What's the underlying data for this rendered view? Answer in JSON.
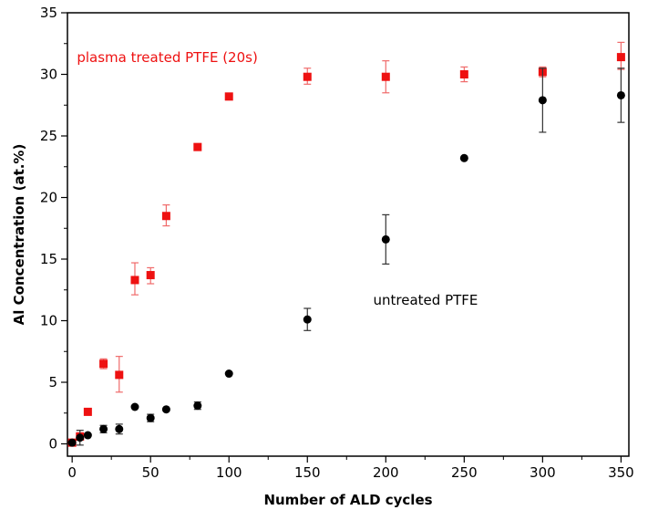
{
  "chart_data": {
    "type": "scatter",
    "title": "",
    "xlabel": "Number of ALD cycles",
    "ylabel": "Al Concentration (at.%)",
    "xlim": [
      -3,
      355
    ],
    "ylim": [
      -1,
      35
    ],
    "xticks": [
      0,
      50,
      100,
      150,
      200,
      250,
      300,
      350
    ],
    "yticks": [
      0,
      5,
      10,
      15,
      20,
      25,
      30,
      35
    ],
    "grid": false,
    "legend": "none",
    "series": [
      {
        "name": "plasma treated PTFE (20s)",
        "color": "#ee1111",
        "marker": "square",
        "x": [
          0,
          5,
          10,
          20,
          30,
          40,
          50,
          60,
          80,
          100,
          150,
          200,
          250,
          300,
          350
        ],
        "y": [
          0.1,
          0.6,
          2.6,
          6.5,
          5.6,
          13.3,
          13.7,
          18.5,
          24.1,
          28.2,
          29.8,
          29.8,
          30.0,
          30.2,
          31.4
        ],
        "err_low": [
          0.1,
          0.3,
          0.1,
          0.4,
          1.4,
          1.2,
          0.7,
          0.8,
          0.1,
          0.1,
          0.6,
          1.3,
          0.6,
          0.4,
          1.0
        ],
        "err_high": [
          0.1,
          0.3,
          0.1,
          0.4,
          1.5,
          1.4,
          0.6,
          0.9,
          0.1,
          0.1,
          0.7,
          1.3,
          0.6,
          0.4,
          1.2
        ]
      },
      {
        "name": "untreated PTFE",
        "color": "#000000",
        "marker": "circle",
        "x": [
          0,
          5,
          10,
          20,
          30,
          40,
          50,
          60,
          80,
          100,
          150,
          200,
          250,
          300,
          350
        ],
        "y": [
          0.1,
          0.5,
          0.7,
          1.2,
          1.2,
          3.0,
          2.1,
          2.8,
          3.1,
          5.7,
          10.1,
          16.6,
          23.2,
          27.9,
          28.3
        ],
        "err_low": [
          0.1,
          0.6,
          0.1,
          0.3,
          0.4,
          0.1,
          0.3,
          0.1,
          0.3,
          0.1,
          0.9,
          2.0,
          0.1,
          2.6,
          2.2
        ],
        "err_high": [
          0.1,
          0.6,
          0.1,
          0.3,
          0.4,
          0.1,
          0.3,
          0.1,
          0.3,
          0.1,
          0.9,
          2.0,
          0.1,
          2.6,
          2.2
        ]
      }
    ],
    "annotations": [
      {
        "text": "plasma treated PTFE (20s)",
        "x": 3,
        "y": 31.0,
        "color": "#ee1111"
      },
      {
        "text": "untreated PTFE",
        "x": 192,
        "y": 11.3,
        "color": "#000000"
      }
    ]
  }
}
